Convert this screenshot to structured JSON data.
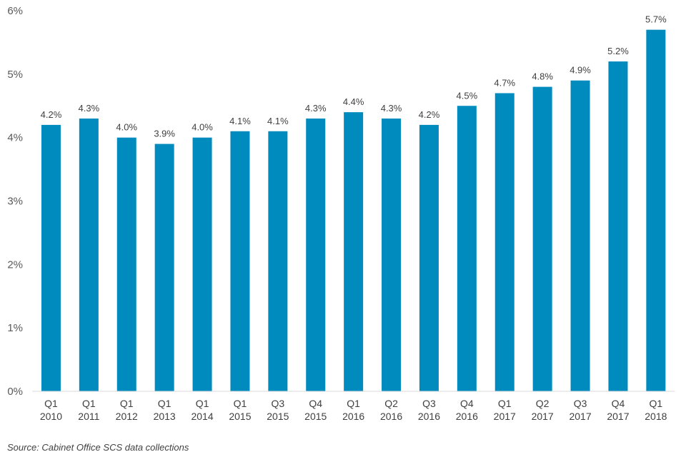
{
  "chart_data": {
    "type": "bar",
    "categories": [
      [
        "Q1",
        "2010"
      ],
      [
        "Q1",
        "2011"
      ],
      [
        "Q1",
        "2012"
      ],
      [
        "Q1",
        "2013"
      ],
      [
        "Q1",
        "2014"
      ],
      [
        "Q1",
        "2015"
      ],
      [
        "Q3",
        "2015"
      ],
      [
        "Q4",
        "2015"
      ],
      [
        "Q1",
        "2016"
      ],
      [
        "Q2",
        "2016"
      ],
      [
        "Q3",
        "2016"
      ],
      [
        "Q4",
        "2016"
      ],
      [
        "Q1",
        "2017"
      ],
      [
        "Q2",
        "2017"
      ],
      [
        "Q3",
        "2017"
      ],
      [
        "Q4",
        "2017"
      ],
      [
        "Q1",
        "2018"
      ]
    ],
    "values": [
      4.2,
      4.3,
      4.0,
      3.9,
      4.0,
      4.1,
      4.1,
      4.3,
      4.4,
      4.3,
      4.2,
      4.5,
      4.7,
      4.8,
      4.9,
      5.2,
      5.7
    ],
    "value_labels": [
      "4.2%",
      "4.3%",
      "4.0%",
      "3.9%",
      "4.0%",
      "4.1%",
      "4.1%",
      "4.3%",
      "4.4%",
      "4.3%",
      "4.2%",
      "4.5%",
      "4.7%",
      "4.8%",
      "4.9%",
      "5.2%",
      "5.7%"
    ],
    "y_ticks": [
      "0%",
      "1%",
      "2%",
      "3%",
      "4%",
      "5%",
      "6%"
    ],
    "ylim": [
      0,
      6
    ],
    "grid": false,
    "bar_color": "#008bbf"
  },
  "source": "Source: Cabinet Office SCS data collections"
}
